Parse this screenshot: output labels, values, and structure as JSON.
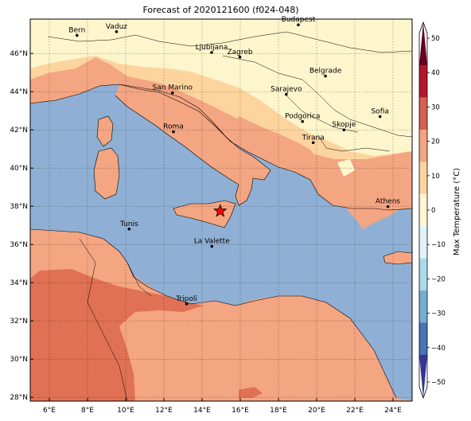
{
  "title": "Forecast of 2020121600 (f024-048)",
  "map": {
    "lon_ticks": [
      "6°E",
      "8°E",
      "10°E",
      "12°E",
      "14°E",
      "16°E",
      "18°E",
      "20°E",
      "22°E",
      "24°E"
    ],
    "lat_ticks": [
      "46°N",
      "44°N",
      "42°N",
      "40°N",
      "38°N",
      "36°N",
      "34°N",
      "32°N",
      "30°N",
      "28°N"
    ],
    "cities": [
      {
        "name": "Bern",
        "lon": 7.45,
        "lat": 46.95
      },
      {
        "name": "Vaduz",
        "lon": 9.52,
        "lat": 47.14
      },
      {
        "name": "Budapest",
        "lon": 19.04,
        "lat": 47.5
      },
      {
        "name": "Ljubljana",
        "lon": 14.5,
        "lat": 46.05
      },
      {
        "name": "Zagreb",
        "lon": 15.98,
        "lat": 45.81
      },
      {
        "name": "Belgrade",
        "lon": 20.46,
        "lat": 44.82
      },
      {
        "name": "San Marino",
        "lon": 12.45,
        "lat": 43.94
      },
      {
        "name": "Sarajevo",
        "lon": 18.41,
        "lat": 43.86
      },
      {
        "name": "Sofia",
        "lon": 23.32,
        "lat": 42.7
      },
      {
        "name": "Podgorica",
        "lon": 19.26,
        "lat": 42.44
      },
      {
        "name": "Skopje",
        "lon": 21.43,
        "lat": 42.0
      },
      {
        "name": "Roma",
        "lon": 12.5,
        "lat": 41.9
      },
      {
        "name": "Tirana",
        "lon": 19.82,
        "lat": 41.33
      },
      {
        "name": "Athens",
        "lon": 23.73,
        "lat": 37.98
      },
      {
        "name": "Tunis",
        "lon": 10.18,
        "lat": 36.81
      },
      {
        "name": "La Valette",
        "lon": 14.51,
        "lat": 35.9
      },
      {
        "name": "Tripoli",
        "lon": 13.19,
        "lat": 32.89
      }
    ],
    "marker": {
      "symbol": "star",
      "lon": 14.95,
      "lat": 37.75,
      "color": "#ff0000"
    }
  },
  "colorbar": {
    "label": "Max Temperature (°C)",
    "ticks": [
      "50",
      "40",
      "30",
      "20",
      "10",
      "0",
      "−10",
      "−20",
      "−30",
      "−40",
      "−50"
    ],
    "colors_top_to_bottom": [
      "#67001f",
      "#b2182b",
      "#d6604d",
      "#f4a582",
      "#fdd49e",
      "#fff7d4",
      "#e0f3f8",
      "#abd9e9",
      "#74add1",
      "#4575b4",
      "#313695"
    ]
  }
}
